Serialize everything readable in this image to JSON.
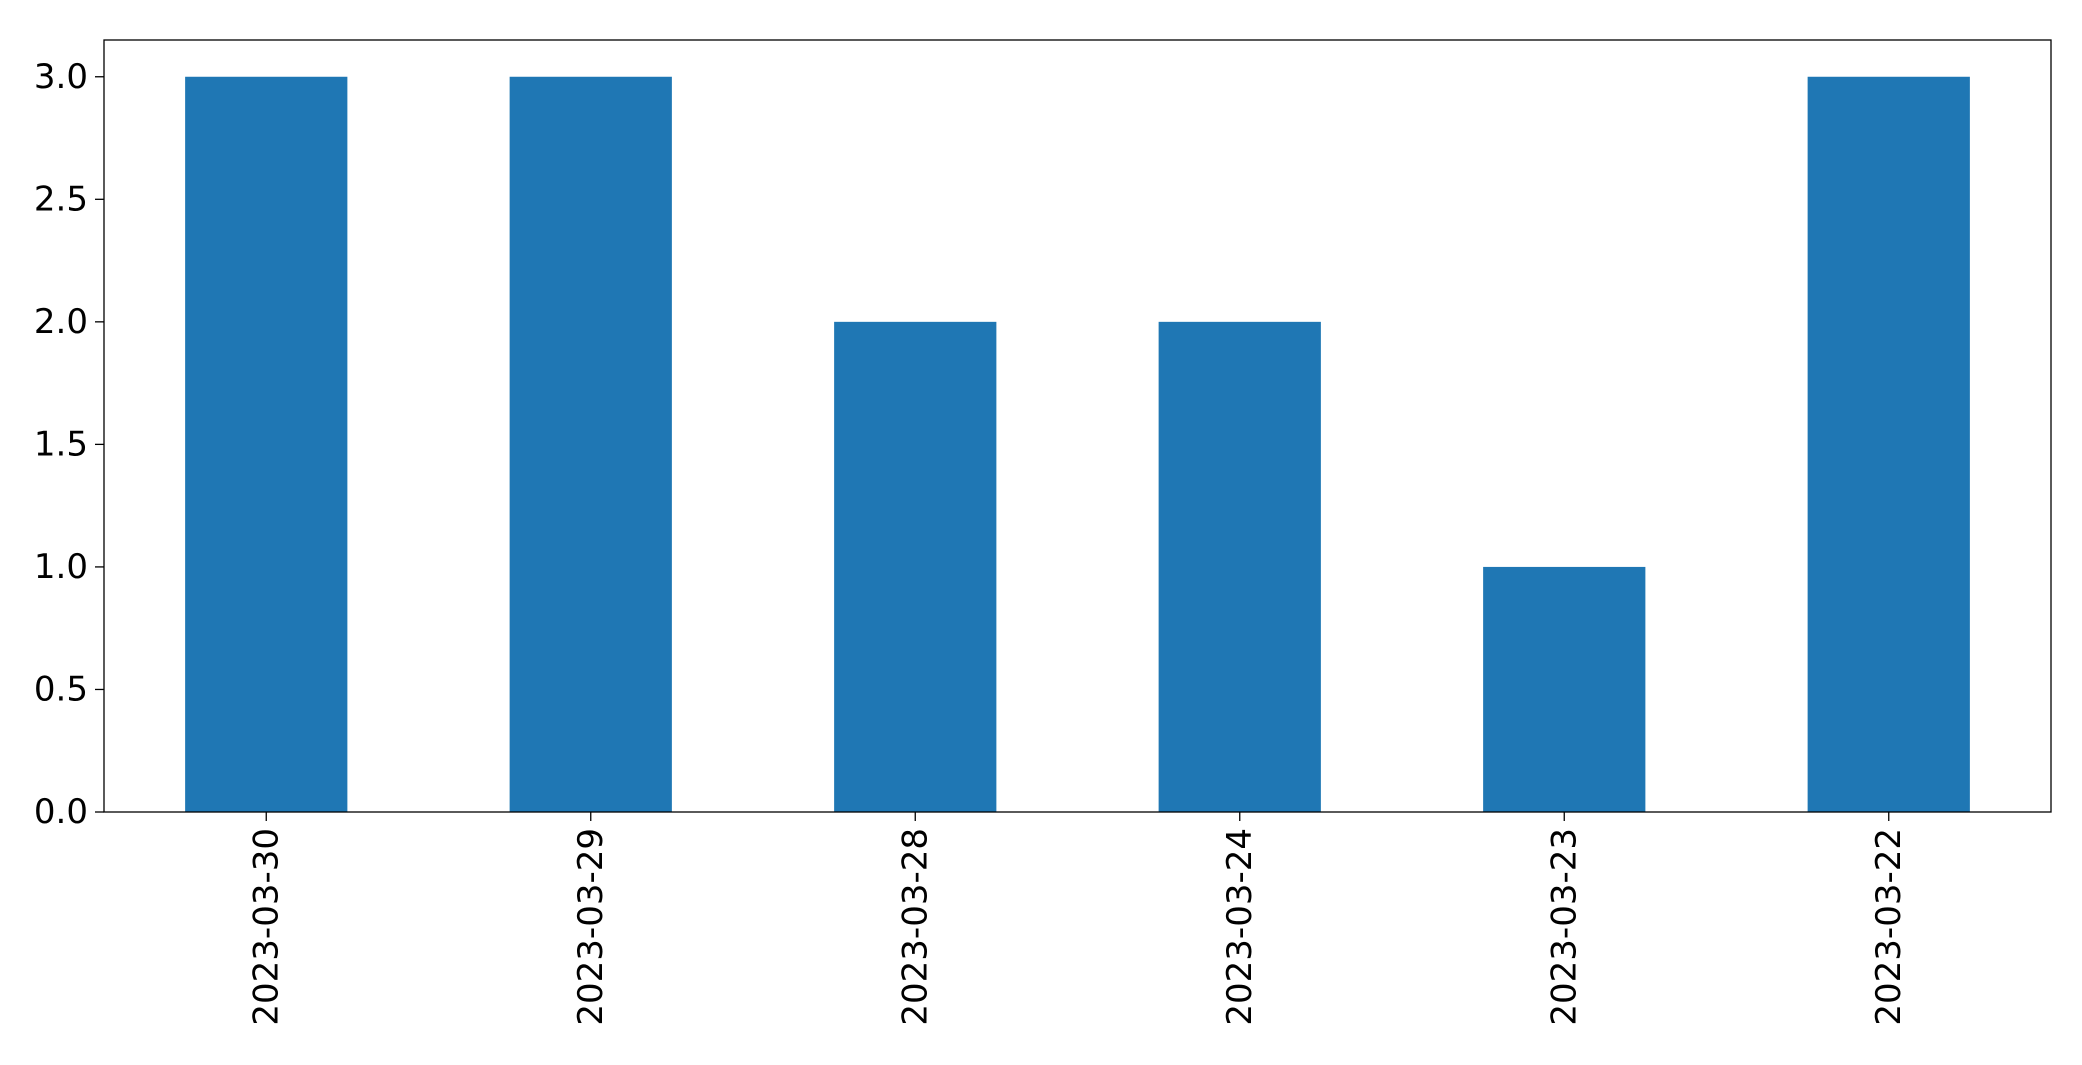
{
  "chart_data": {
    "type": "bar",
    "title": "",
    "xlabel": "",
    "ylabel": "",
    "categories": [
      "2023-03-30",
      "2023-03-29",
      "2023-03-28",
      "2023-03-24",
      "2023-03-23",
      "2023-03-22"
    ],
    "values": [
      3,
      3,
      2,
      2,
      1,
      3
    ],
    "ylim": [
      0,
      3.15
    ],
    "yticks": [
      "0.0",
      "0.5",
      "1.0",
      "1.5",
      "2.0",
      "2.5",
      "3.0"
    ],
    "bar_color": "#1f77b4",
    "grid": false,
    "legend": "none",
    "x_tick_rotation": "vertical"
  }
}
